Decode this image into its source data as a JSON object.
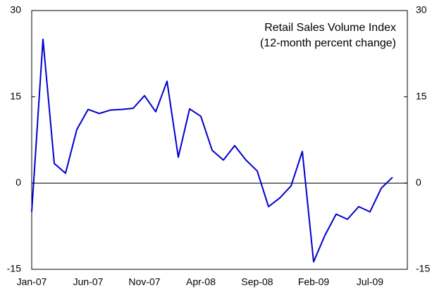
{
  "chart_data": {
    "type": "line",
    "title": "Retail Sales Volume Index",
    "subtitle": "(12-month percent change)",
    "categories": [
      "Jan-07",
      null,
      null,
      null,
      null,
      "Jun-07",
      null,
      null,
      null,
      null,
      "Nov-07",
      null,
      null,
      null,
      null,
      "Apr-08",
      null,
      null,
      null,
      null,
      "Sep-08",
      null,
      null,
      null,
      null,
      "Feb-09",
      null,
      null,
      null,
      null,
      "Jul-09",
      null,
      null
    ],
    "series": [
      {
        "name": "Retail Sales Volume Index",
        "color": "#0000cc",
        "values": [
          -5,
          25,
          3.4,
          1.7,
          9.3,
          12.8,
          12.1,
          12.7,
          12.8,
          13.0,
          15.2,
          12.4,
          17.7,
          4.5,
          12.9,
          11.6,
          5.7,
          4.0,
          6.5,
          4.0,
          2.1,
          -4.1,
          -2.6,
          -0.5,
          5.5,
          -13.7,
          -9.1,
          -5.4,
          -6.3,
          -4.1,
          -5.0,
          -0.9,
          1.0
        ]
      }
    ],
    "ylim": [
      -15,
      30
    ],
    "yticks": [
      -15,
      0,
      15,
      30
    ],
    "y2lim": [
      -15,
      30
    ],
    "y2ticks": [
      -15,
      0,
      15,
      30
    ],
    "zero_line": true
  }
}
